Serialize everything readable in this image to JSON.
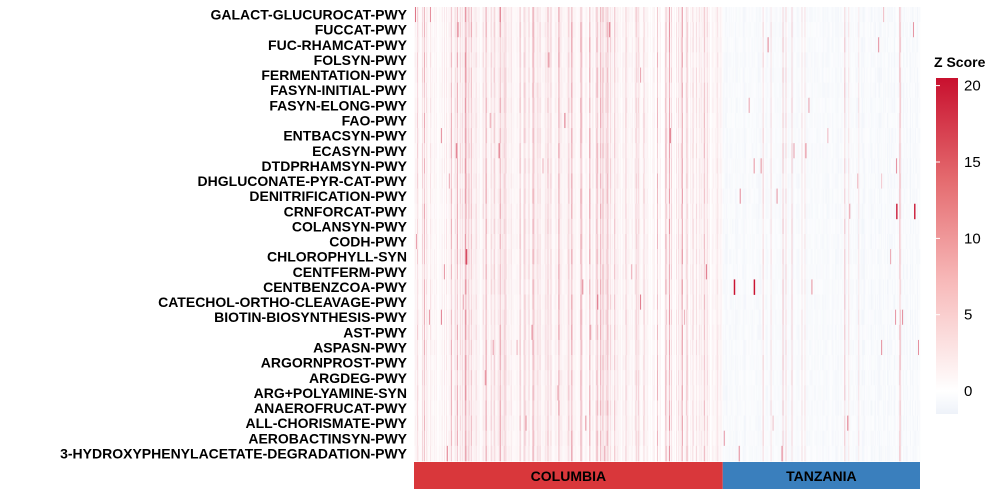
{
  "chart_data": {
    "type": "heatmap",
    "title": "",
    "xlabel": "",
    "ylabel": "",
    "rows": [
      "GALACT-GLUCUROCAT-PWY",
      "FUCCAT-PWY",
      "FUC-RHAMCAT-PWY",
      "FOLSYN-PWY",
      "FERMENTATION-PWY",
      "FASYN-INITIAL-PWY",
      "FASYN-ELONG-PWY",
      "FAO-PWY",
      "ENTBACSYN-PWY",
      "ECASYN-PWY",
      "DTDPRHAMSYN-PWY",
      "DHGLUCONATE-PYR-CAT-PWY",
      "DENITRIFICATION-PWY",
      "CRNFORCAT-PWY",
      "COLANSYN-PWY",
      "CODH-PWY",
      "CHLOROPHYLL-SYN",
      "CENTFERM-PWY",
      "CENTBENZCOA-PWY",
      "CATECHOL-ORTHO-CLEAVAGE-PWY",
      "BIOTIN-BIOSYNTHESIS-PWY",
      "AST-PWY",
      "ASPASN-PWY",
      "ARGORNPROST-PWY",
      "ARGDEG-PWY",
      "ARG+POLYAMINE-SYN",
      "ANAEROFRUCAT-PWY",
      "ALL-CHORISMATE-PWY",
      "AEROBACTINSYN-PWY",
      "3-HYDROXYPHENYLACETATE-DEGRADATION-PWY"
    ],
    "column_groups": [
      {
        "name": "COLUMBIA",
        "n_samples": 310,
        "color": "#d9373b"
      },
      {
        "name": "TANZANIA",
        "n_samples": 198,
        "color": "#3a7fbd"
      }
    ],
    "color_scale": {
      "title": "Z Score",
      "min": -1.5,
      "max": 20.5,
      "ticks": [
        0,
        5,
        10,
        15,
        20
      ],
      "tick_labels": [
        "0",
        "5",
        "10",
        "15",
        "20"
      ],
      "low_color": "#eef2f9",
      "mid_color": "#ffffff",
      "high_color": "#c8102e"
    },
    "values_note_visible": "",
    "highlight_cells": [
      {
        "row": "CENTBENZCOA-PWY",
        "group": "TANZANIA",
        "value": 20
      },
      {
        "row": "CRNFORCAT-PWY",
        "group": "TANZANIA",
        "value": 18
      },
      {
        "row": "CHLOROPHYLL-SYN",
        "group": "COLUMBIA",
        "value": 14
      }
    ]
  }
}
